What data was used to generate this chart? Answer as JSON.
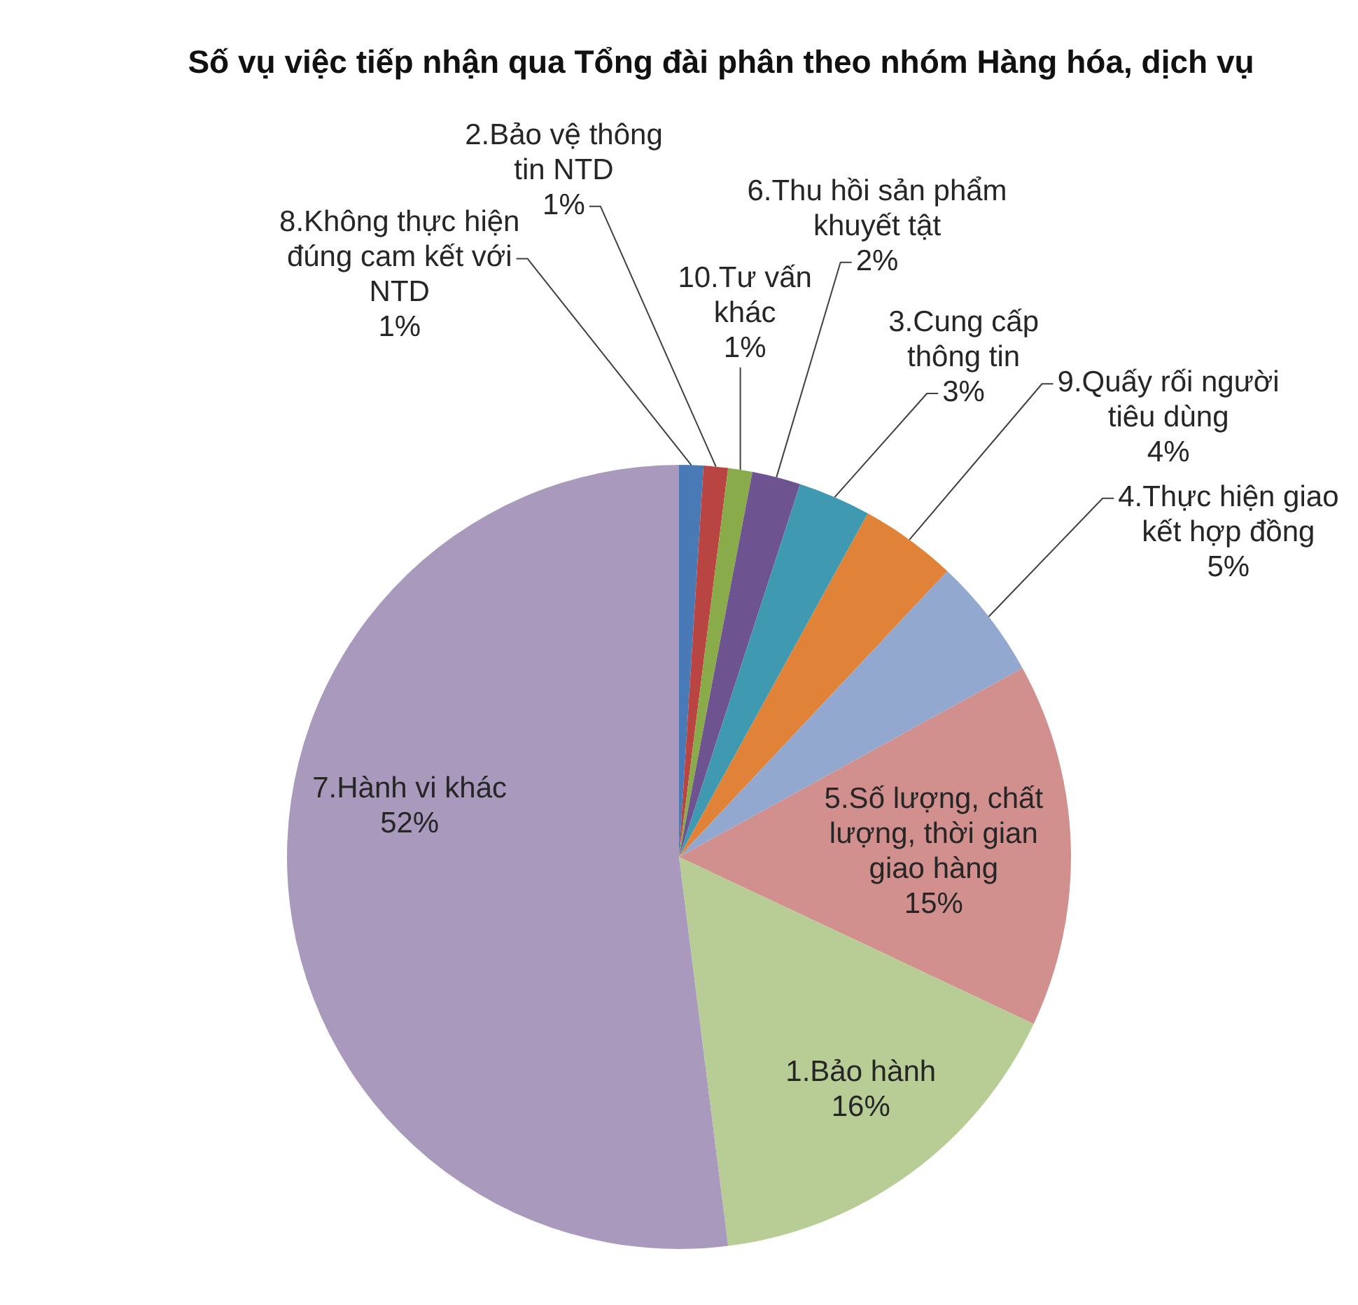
{
  "chart_data": {
    "type": "pie",
    "title": "Số vụ việc tiếp nhận qua Tổng đài phân theo nhóm Hàng hóa, dịch vụ",
    "categories": [
      "8.Không thực hiện đúng cam kết với NTD",
      "2.Bảo vệ thông tin NTD",
      "10.Tư vấn khác",
      "6.Thu hồi sản phẩm khuyết tật",
      "3.Cung cấp thông tin",
      "9.Quấy rối người tiêu dùng",
      "4.Thực hiện giao kết hợp đồng",
      "5.Số lượng, chất lượng, thời gian giao hàng",
      "1.Bảo hành",
      "7.Hành vi khác"
    ],
    "values": [
      1,
      1,
      1,
      2,
      3,
      4,
      5,
      15,
      16,
      52
    ],
    "value_labels": [
      "1%",
      "1%",
      "1%",
      "2%",
      "3%",
      "4%",
      "5%",
      "15%",
      "16%",
      "52%"
    ],
    "colors": [
      "#4a7ab5",
      "#b94542",
      "#8aab4a",
      "#6d5490",
      "#3f9ab1",
      "#e08237",
      "#92a8cf",
      "#d18f8e",
      "#b8cd95",
      "#a899bd"
    ]
  }
}
